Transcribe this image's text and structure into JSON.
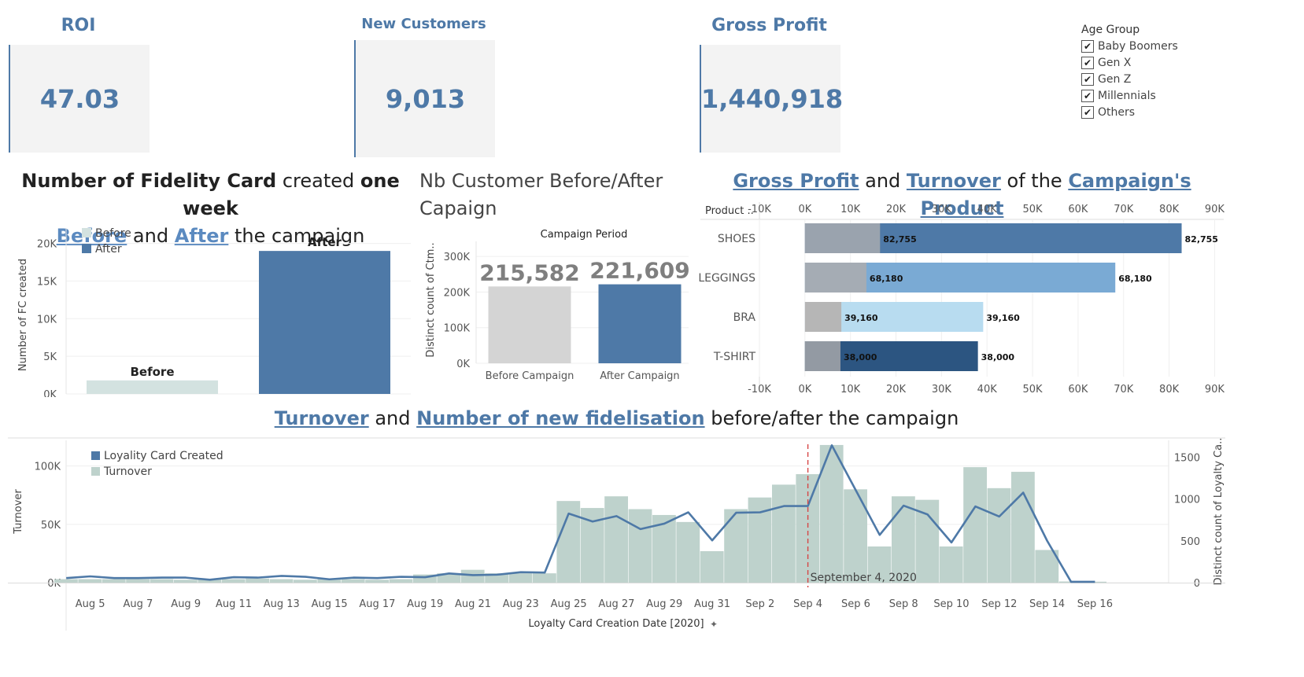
{
  "kpis": {
    "roi": {
      "title": "ROI",
      "value": "47.03"
    },
    "new_customers": {
      "title": "New Customers",
      "value": "9,013"
    },
    "gross_profit": {
      "title": "Gross Profit",
      "value": "1,440,918"
    }
  },
  "filter": {
    "title": "Age Group",
    "items": [
      "Baby Boomers",
      "Gen X",
      "Gen Z",
      "Millennials",
      "Others"
    ]
  },
  "titles": {
    "fc_line1_a": "Number of Fidelity Card",
    "fc_line1_b": " created ",
    "fc_line1_c": "one week",
    "fc_line2_a": "Before",
    "fc_line2_b": " and ",
    "fc_line2_c": "After",
    "fc_line2_d": " the campaign",
    "nb_line1": "Nb Customer Before/After",
    "nb_line2": "Capaign",
    "gp_a": "Gross Profit",
    "gp_b": " and ",
    "gp_c": "Turnover",
    "gp_d": " of the ",
    "gp_e": "Campaign's Product",
    "tl_a": "Turnover",
    "tl_b": " and ",
    "tl_c": "Number of new fidelisation",
    "tl_d": " before/after the campaign"
  },
  "chart_data": [
    {
      "id": "fidelity_cards",
      "type": "bar",
      "categories": [
        "Before",
        "After"
      ],
      "values": [
        1800,
        19000
      ],
      "colors": [
        "#d3e2e0",
        "#4e79a7"
      ],
      "legend": [
        "Before",
        "After"
      ],
      "ylabel": "Number of FC created",
      "ylim": [
        0,
        21000
      ],
      "yticks": [
        0,
        5000,
        10000,
        15000,
        20000
      ],
      "ytick_labels": [
        "0K",
        "5K",
        "10K",
        "15K",
        "20K"
      ]
    },
    {
      "id": "customers",
      "type": "bar",
      "title": "Campaign Period",
      "categories": [
        "Before Campaign",
        "After Campaign"
      ],
      "values": [
        215582,
        221609
      ],
      "value_labels": [
        "215,582",
        "221,609"
      ],
      "colors": [
        "#d4d4d4",
        "#4e79a7"
      ],
      "ylabel": "Distinct count of Ctm..",
      "ylim": [
        0,
        320000
      ],
      "yticks": [
        0,
        100000,
        200000,
        300000
      ],
      "ytick_labels": [
        "0K",
        "100K",
        "200K",
        "300K"
      ]
    },
    {
      "id": "products",
      "type": "bar",
      "orientation": "horizontal",
      "header": "Product ..",
      "categories": [
        "SHOES",
        "LEGGINGS",
        "BRA",
        "T-SHIRT"
      ],
      "series": [
        {
          "name": "Gross Profit",
          "values": [
            16500,
            13500,
            8000,
            7800
          ],
          "colors": [
            "#9aa3ae",
            "#a5acb4",
            "#b6b6b6",
            "#939aa3"
          ]
        },
        {
          "name": "Turnover",
          "values": [
            82755,
            68180,
            39160,
            38000
          ],
          "colors": [
            "#4e79a7",
            "#7aaad4",
            "#b8dcf0",
            "#2c5581"
          ]
        }
      ],
      "value_labels": [
        "82,755",
        "68,180",
        "39,160",
        "38,000"
      ],
      "xlim": [
        -10000,
        92000
      ],
      "xticks": [
        -10000,
        0,
        10000,
        20000,
        30000,
        40000,
        50000,
        60000,
        70000,
        80000,
        90000
      ],
      "xtick_labels": [
        "-10K",
        "0K",
        "10K",
        "20K",
        "30K",
        "40K",
        "50K",
        "60K",
        "70K",
        "80K",
        "90K"
      ]
    },
    {
      "id": "timeline",
      "type": "bar",
      "x": [
        "Aug 4",
        "Aug 5",
        "Aug 6",
        "Aug 7",
        "Aug 8",
        "Aug 9",
        "Aug 10",
        "Aug 11",
        "Aug 12",
        "Aug 13",
        "Aug 14",
        "Aug 15",
        "Aug 16",
        "Aug 17",
        "Aug 18",
        "Aug 19",
        "Aug 20",
        "Aug 21",
        "Aug 22",
        "Aug 23",
        "Aug 24",
        "Aug 25",
        "Aug 26",
        "Aug 27",
        "Aug 28",
        "Aug 29",
        "Aug 30",
        "Aug 31",
        "Sep 1",
        "Sep 2",
        "Sep 3",
        "Sep 4",
        "Sep 5",
        "Sep 6",
        "Sep 7",
        "Sep 8",
        "Sep 9",
        "Sep 10",
        "Sep 11",
        "Sep 12",
        "Sep 13",
        "Sep 14",
        "Sep 15",
        "Sep 16"
      ],
      "xtick_labels": [
        "Aug 5",
        "Aug 7",
        "Aug 9",
        "Aug 11",
        "Aug 13",
        "Aug 15",
        "Aug 17",
        "Aug 19",
        "Aug 21",
        "Aug 23",
        "Aug 25",
        "Aug 27",
        "Aug 29",
        "Aug 31",
        "Sep 2",
        "Sep 4",
        "Sep 6",
        "Sep 8",
        "Sep 10",
        "Sep 12",
        "Sep 14",
        "Sep 16"
      ],
      "series": [
        {
          "name": "Turnover",
          "type": "bar",
          "color": "#bed2cc",
          "values": [
            3000,
            3000,
            3000,
            3000,
            3000,
            2500,
            3000,
            3000,
            3500,
            3000,
            2500,
            3000,
            3000,
            2500,
            3000,
            7000,
            8000,
            11000,
            8000,
            8000,
            8000,
            70000,
            64000,
            74000,
            63000,
            58000,
            52000,
            27000,
            63000,
            73000,
            84000,
            93000,
            118000,
            80000,
            31000,
            74000,
            71000,
            31000,
            99000,
            81000,
            95000,
            28000,
            1000,
            800
          ]
        },
        {
          "name": "Loyality Card Created",
          "type": "line",
          "color": "#4e79a7",
          "values": [
            55,
            75,
            55,
            55,
            60,
            60,
            35,
            65,
            60,
            80,
            70,
            40,
            60,
            55,
            70,
            65,
            110,
            90,
            95,
            125,
            120,
            825,
            730,
            795,
            640,
            705,
            840,
            505,
            835,
            840,
            915,
            915,
            1640,
            1105,
            570,
            920,
            815,
            480,
            910,
            790,
            1075,
            500,
            10,
            10
          ]
        }
      ],
      "legend": [
        "Loyality Card Created",
        "Turnover"
      ],
      "ylabel": "Turnover",
      "y2label": "Distinct count of Loyalty Ca..",
      "xlabel": "Loyalty Card Creation Date [2020]",
      "ylim": [
        0,
        122000
      ],
      "y2lim": [
        0,
        1700
      ],
      "yticks": [
        0,
        50000,
        100000
      ],
      "ytick_labels": [
        "0K",
        "50K",
        "100K"
      ],
      "y2ticks": [
        0,
        500,
        1000,
        1500
      ],
      "y2tick_labels": [
        "0",
        "500",
        "1000",
        "1500"
      ],
      "annotation": {
        "x": "Sep 4",
        "label": "September 4, 2020",
        "color": "#d64545"
      }
    }
  ]
}
